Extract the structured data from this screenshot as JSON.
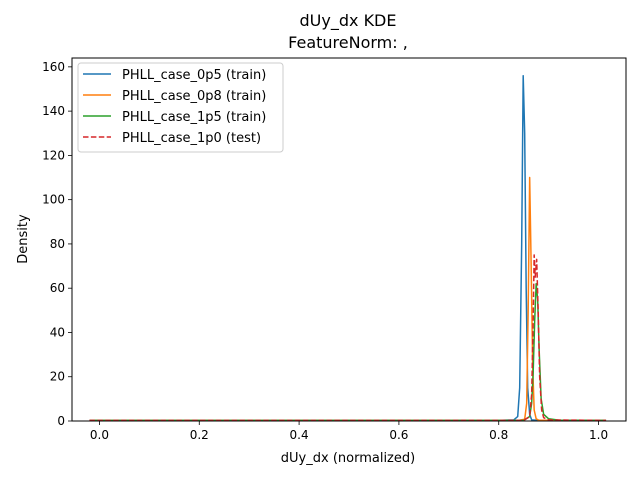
{
  "chart_data": {
    "type": "line",
    "title": "dUy_dx KDE",
    "subtitle": "FeatureNorm: ,",
    "xlabel": "dUy_dx (normalized)",
    "ylabel": "Density",
    "xlim": [
      -0.055,
      1.055
    ],
    "ylim": [
      0,
      164
    ],
    "xticks": [
      0.0,
      0.2,
      0.4,
      0.6,
      0.8,
      1.0
    ],
    "xtick_labels": [
      "0.0",
      "0.2",
      "0.4",
      "0.6",
      "0.8",
      "1.0"
    ],
    "yticks": [
      0,
      20,
      40,
      60,
      80,
      100,
      120,
      140,
      160
    ],
    "ytick_labels": [
      "0",
      "20",
      "40",
      "60",
      "80",
      "100",
      "120",
      "140",
      "160"
    ],
    "grid": false,
    "legend_position": "top-left",
    "series": [
      {
        "name": "PHLL_case_0p5 (train)",
        "color": "#1f77b4",
        "dash": "solid",
        "x": [
          -0.02,
          0.2,
          0.5,
          0.8,
          0.83,
          0.838,
          0.842,
          0.846,
          0.849,
          0.852,
          0.855,
          0.858,
          0.862,
          0.866,
          0.88,
          0.95,
          1.0,
          1.015
        ],
        "y": [
          0.3,
          0.3,
          0.3,
          0.3,
          0.5,
          2,
          15,
          80,
          156,
          130,
          60,
          15,
          3,
          0.5,
          0.3,
          0.3,
          0.3,
          0.3
        ]
      },
      {
        "name": "PHLL_case_0p8 (train)",
        "color": "#ff7f0e",
        "dash": "solid",
        "x": [
          -0.02,
          0.3,
          0.6,
          0.84,
          0.852,
          0.856,
          0.859,
          0.862,
          0.865,
          0.868,
          0.871,
          0.875,
          0.88,
          0.9,
          1.0,
          1.015
        ],
        "y": [
          0.3,
          0.3,
          0.3,
          0.3,
          0.8,
          8,
          50,
          110,
          70,
          25,
          5,
          1,
          0.4,
          0.3,
          0.3,
          0.3
        ]
      },
      {
        "name": "PHLL_case_1p5 (train)",
        "color": "#2ca02c",
        "dash": "solid",
        "x": [
          -0.02,
          0.3,
          0.6,
          0.85,
          0.862,
          0.866,
          0.869,
          0.872,
          0.875,
          0.878,
          0.881,
          0.885,
          0.89,
          0.9,
          0.92,
          1.0,
          1.015
        ],
        "y": [
          0.3,
          0.3,
          0.3,
          0.3,
          2,
          8,
          22,
          45,
          62,
          55,
          32,
          10,
          3,
          1,
          0.4,
          0.3,
          0.3
        ]
      },
      {
        "name": "PHLL_case_1p0 (test)",
        "color": "#d62728",
        "dash": "dashed",
        "x": [
          -0.02,
          0.3,
          0.6,
          0.85,
          0.862,
          0.866,
          0.869,
          0.871,
          0.873,
          0.876,
          0.879,
          0.882,
          0.886,
          0.89,
          0.9,
          1.0,
          1.015
        ],
        "y": [
          0.3,
          0.3,
          0.3,
          0.3,
          2,
          12,
          45,
          75,
          65,
          73,
          50,
          20,
          5,
          1.5,
          0.5,
          0.3,
          0.3
        ]
      }
    ]
  }
}
